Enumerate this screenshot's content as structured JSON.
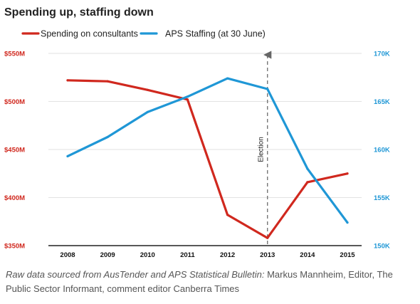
{
  "chart_data": {
    "type": "line",
    "title": "Spending up, staffing down",
    "x": [
      "2008",
      "2009",
      "2010",
      "2011",
      "2012",
      "2013",
      "2014",
      "2015"
    ],
    "series": [
      {
        "name": "Spending on consultants",
        "axis": "left",
        "color": "#d0281e",
        "values": [
          522,
          521,
          512,
          502,
          382,
          358,
          416,
          425
        ]
      },
      {
        "name": "APS Staffing (at 30 June)",
        "axis": "right",
        "color": "#1f97d6",
        "values": [
          159300,
          161300,
          163900,
          165500,
          167400,
          166300,
          158000,
          152400
        ]
      }
    ],
    "y_left": {
      "ylim": [
        350,
        550
      ],
      "ticks": [
        350,
        400,
        450,
        500,
        550
      ],
      "tick_labels": [
        "$350M",
        "$400M",
        "$450M",
        "$500M",
        "$550M"
      ],
      "color": "#d0281e"
    },
    "y_right": {
      "ylim": [
        150000,
        170000
      ],
      "ticks": [
        150000,
        155000,
        160000,
        165000,
        170000
      ],
      "tick_labels": [
        "150K",
        "155K",
        "160K",
        "165K",
        "170K"
      ],
      "color": "#1f97d6"
    },
    "grid": true,
    "legend_placement": "top-left",
    "annotations": [
      {
        "text": "Election",
        "x": "2013",
        "style": "dashed-arrow"
      }
    ]
  },
  "caption": {
    "source_text": "Raw data sourced from AusTender and APS Statistical Bulletin:",
    "credit_text": " Markus Mannheim, Editor, The Public Sector Informant, comment editor Canberra Times"
  }
}
